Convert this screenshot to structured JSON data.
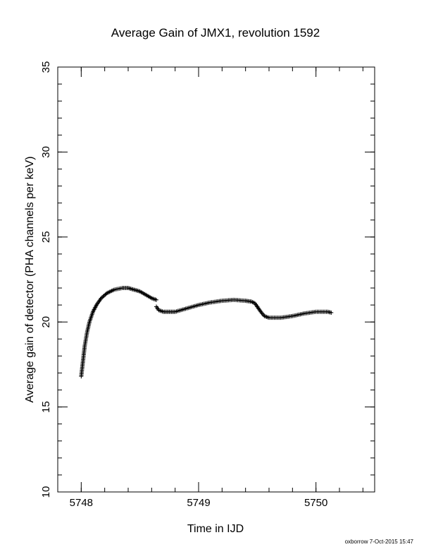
{
  "chart_data": {
    "type": "scatter",
    "title": "Average Gain of JMX1, revolution 1592",
    "xlabel": "Time in IJD",
    "ylabel": "Average gain of detector (PHA channels per keV)",
    "xlim": [
      5747.8,
      5750.5
    ],
    "ylim": [
      10,
      35
    ],
    "xticks": [
      5748,
      5749,
      5750
    ],
    "yticks": [
      10,
      15,
      20,
      25,
      30,
      35
    ],
    "x_minor_step": 0.2,
    "y_minor_step": 1,
    "marker": "plus",
    "grid": false,
    "segments": [
      {
        "x": [
          5748.0,
          5748.01,
          5748.02,
          5748.03,
          5748.05,
          5748.07,
          5748.1,
          5748.13,
          5748.17,
          5748.22,
          5748.28,
          5748.35,
          5748.4,
          5748.45,
          5748.5,
          5748.55,
          5748.6,
          5748.64
        ],
        "y": [
          16.8,
          17.4,
          18.0,
          18.6,
          19.4,
          20.0,
          20.6,
          21.0,
          21.4,
          21.7,
          21.9,
          22.0,
          22.0,
          21.9,
          21.8,
          21.6,
          21.4,
          21.3
        ]
      },
      {
        "x": [
          5748.64,
          5748.66,
          5748.7,
          5748.75,
          5748.8,
          5748.9,
          5749.0,
          5749.1,
          5749.2,
          5749.3,
          5749.4,
          5749.45,
          5749.48,
          5749.5
        ],
        "y": [
          20.9,
          20.7,
          20.6,
          20.6,
          20.6,
          20.8,
          21.0,
          21.15,
          21.25,
          21.3,
          21.25,
          21.2,
          21.1,
          20.9
        ]
      },
      {
        "x": [
          5749.5,
          5749.53,
          5749.56,
          5749.6,
          5749.7,
          5749.8,
          5749.9,
          5750.0,
          5750.1,
          5750.13
        ],
        "y": [
          20.9,
          20.6,
          20.35,
          20.25,
          20.25,
          20.35,
          20.5,
          20.6,
          20.6,
          20.55
        ]
      }
    ]
  },
  "footer": "oxborrow  7-Oct-2015 15:47"
}
